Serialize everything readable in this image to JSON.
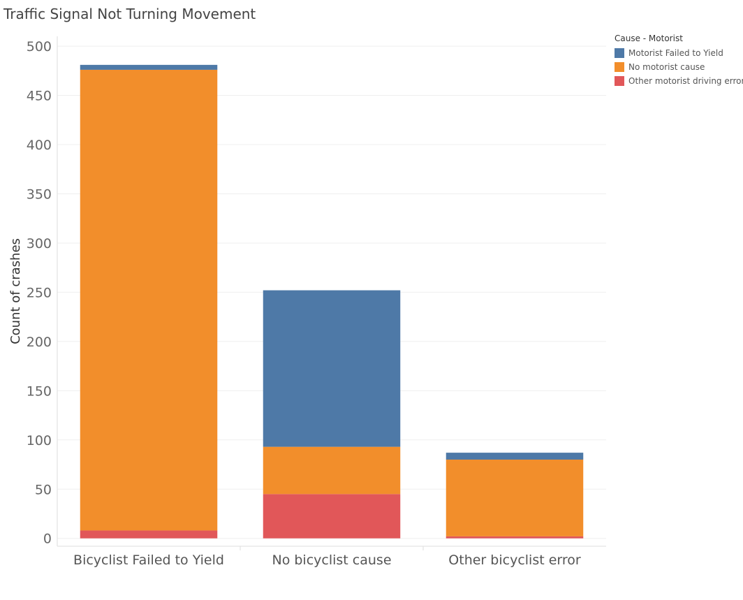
{
  "chart_data": {
    "type": "bar",
    "stacked": true,
    "title": "Traffic Signal Not Turning Movement",
    "xlabel": "",
    "ylabel": "Count of crashes",
    "ylim": [
      -8,
      510
    ],
    "yticks": [
      0,
      50,
      100,
      150,
      200,
      250,
      300,
      350,
      400,
      450,
      500
    ],
    "categories": [
      "Bicyclist Failed to Yield",
      "No bicyclist cause",
      "Other bicyclist error"
    ],
    "series": [
      {
        "name": "Other motorist driving error",
        "color": "#e15759",
        "values": [
          8,
          45,
          2
        ]
      },
      {
        "name": "No motorist cause",
        "color": "#f28e2b",
        "values": [
          468,
          48,
          78
        ]
      },
      {
        "name": "Motorist Failed to Yield",
        "color": "#4e79a7",
        "values": [
          5,
          159,
          7
        ]
      }
    ],
    "grid": true,
    "legend": {
      "title": "Cause - Motorist",
      "placement": "top-right",
      "items": [
        "Motorist Failed to Yield",
        "No motorist cause",
        "Other motorist driving error"
      ]
    }
  }
}
